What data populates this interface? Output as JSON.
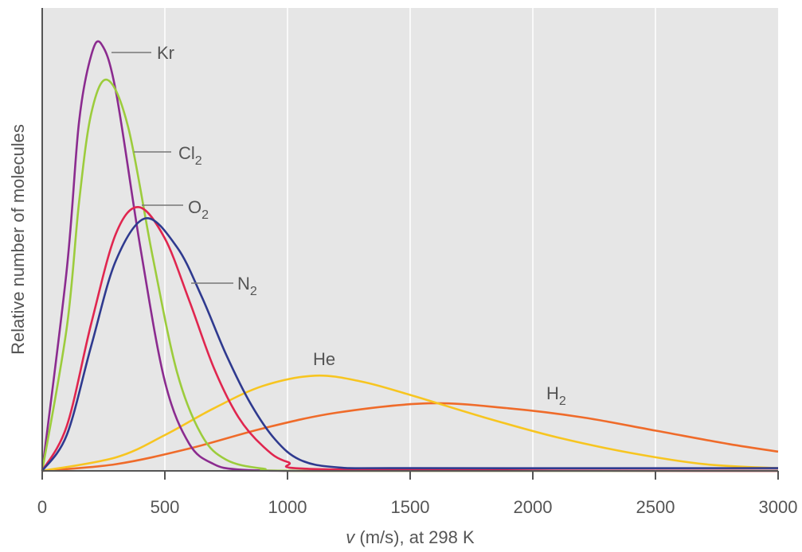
{
  "chart_data": {
    "type": "line",
    "title": "",
    "xlabel_var": "v",
    "xlabel_rest": " (m/s), at 298 K",
    "ylabel": "Relative number of molecules",
    "xlim": [
      0,
      3000
    ],
    "ylim": [
      0,
      1
    ],
    "grid": true,
    "x_ticks": [
      "0",
      "500",
      "1000",
      "1500",
      "2000",
      "2500",
      "3000"
    ],
    "series": [
      {
        "name": "Kr",
        "label_main": "Kr",
        "label_sub": "",
        "color": "#8b2b8f",
        "peak_x": 241,
        "peak_y": 0.955,
        "x": [
          0,
          100,
          150,
          200,
          241,
          300,
          400,
          500,
          600,
          700,
          800,
          1000,
          1200,
          3000
        ],
        "y": [
          0,
          0.45,
          0.78,
          0.93,
          0.955,
          0.85,
          0.5,
          0.2,
          0.06,
          0.015,
          0.003,
          0,
          0,
          0
        ]
      },
      {
        "name": "Cl2",
        "label_main": "Cl",
        "label_sub": "2",
        "color": "#9ccc3c",
        "peak_x": 265,
        "peak_y": 0.875,
        "x": [
          0,
          100,
          150,
          200,
          265,
          350,
          450,
          550,
          650,
          750,
          900,
          1100,
          3000
        ],
        "y": [
          0,
          0.32,
          0.6,
          0.8,
          0.875,
          0.77,
          0.48,
          0.22,
          0.08,
          0.025,
          0.005,
          0,
          0
        ]
      },
      {
        "name": "O2",
        "label_main": "O",
        "label_sub": "2",
        "color": "#e0264f",
        "peak_x": 394,
        "peak_y": 0.59,
        "x": [
          0,
          100,
          200,
          300,
          394,
          500,
          600,
          700,
          800,
          900,
          1000,
          1200,
          3000
        ],
        "y": [
          0,
          0.1,
          0.33,
          0.53,
          0.59,
          0.52,
          0.38,
          0.23,
          0.12,
          0.055,
          0.02,
          0.003,
          0
        ]
      },
      {
        "name": "N2",
        "label_main": "N",
        "label_sub": "2",
        "color": "#2f3a8f",
        "peak_x": 421,
        "peak_y": 0.565,
        "x": [
          0,
          100,
          200,
          300,
          421,
          550,
          650,
          750,
          850,
          950,
          1050,
          1200,
          1500,
          3000
        ],
        "y": [
          0,
          0.08,
          0.28,
          0.47,
          0.565,
          0.5,
          0.39,
          0.26,
          0.15,
          0.07,
          0.025,
          0.008,
          0.006,
          0.006
        ]
      },
      {
        "name": "He",
        "label_main": "He",
        "label_sub": "",
        "color": "#f7c520",
        "peak_x": 1113,
        "peak_y": 0.213,
        "x": [
          0,
          300,
          500,
          700,
          900,
          1113,
          1300,
          1500,
          1800,
          2100,
          2400,
          2700,
          3000
        ],
        "y": [
          0,
          0.03,
          0.08,
          0.14,
          0.19,
          0.213,
          0.2,
          0.17,
          0.12,
          0.075,
          0.04,
          0.015,
          0.006
        ]
      },
      {
        "name": "H2",
        "label_main": "H",
        "label_sub": "2",
        "color": "#ef6b2a",
        "peak_x": 1574,
        "peak_y": 0.151,
        "x": [
          0,
          300,
          600,
          900,
          1200,
          1574,
          1900,
          2200,
          2500,
          2800,
          3000
        ],
        "y": [
          0,
          0.015,
          0.05,
          0.095,
          0.13,
          0.151,
          0.14,
          0.12,
          0.09,
          0.06,
          0.043
        ]
      }
    ]
  }
}
